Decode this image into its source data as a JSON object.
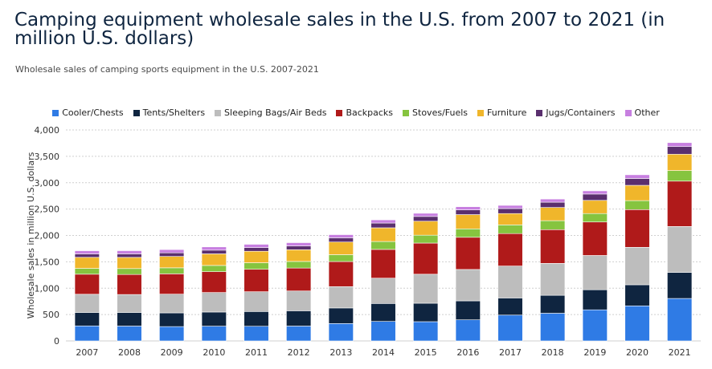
{
  "title": "Camping equipment wholesale sales in the U.S. from 2007 to 2021 (in million U.S. dollars)",
  "subtitle": "Wholesale sales of camping sports equipment in the U.S. 2007-2021",
  "chart_data": {
    "type": "bar",
    "stacked": true,
    "title": "Camping equipment wholesale sales in the U.S. from 2007 to 2021 (in million U.S. dollars)",
    "ylabel": "Wholesale sales in million U.S. dollars",
    "xlabel": "",
    "ylim": [
      0,
      4000
    ],
    "yticks": [
      0,
      500,
      1000,
      1500,
      2000,
      2500,
      3000,
      3500,
      4000
    ],
    "ytick_labels": [
      "0",
      "500",
      "1,000",
      "1,500",
      "2,000",
      "2,500",
      "3,000",
      "3,500",
      "4,000"
    ],
    "grid": true,
    "legend_position": "top",
    "categories": [
      "2007",
      "2008",
      "2009",
      "2010",
      "2011",
      "2012",
      "2013",
      "2014",
      "2015",
      "2016",
      "2017",
      "2018",
      "2019",
      "2020",
      "2021"
    ],
    "series": [
      {
        "name": "Cooler/Chests",
        "color": "#2f7be5",
        "values": [
          285,
          282,
          272,
          280,
          278,
          282,
          330,
          370,
          365,
          400,
          490,
          525,
          590,
          665,
          805
        ]
      },
      {
        "name": "Tents/Shelters",
        "color": "#0f2540",
        "values": [
          255,
          258,
          260,
          268,
          280,
          290,
          295,
          340,
          350,
          360,
          325,
          340,
          380,
          400,
          495
        ]
      },
      {
        "name": "Sleeping Bags/Air Beds",
        "color": "#bdbdbd",
        "values": [
          345,
          340,
          355,
          370,
          375,
          375,
          405,
          480,
          550,
          595,
          605,
          605,
          650,
          710,
          870
        ]
      },
      {
        "name": "Backpacks",
        "color": "#b01a1a",
        "values": [
          380,
          380,
          385,
          395,
          425,
          435,
          475,
          545,
          590,
          610,
          615,
          640,
          635,
          715,
          860
        ]
      },
      {
        "name": "Stoves/Fuels",
        "color": "#86c43f",
        "values": [
          110,
          112,
          114,
          118,
          124,
          125,
          130,
          150,
          150,
          160,
          165,
          170,
          160,
          170,
          200
        ]
      },
      {
        "name": "Furniture",
        "color": "#f0b62b",
        "values": [
          210,
          212,
          216,
          220,
          218,
          222,
          240,
          260,
          265,
          270,
          215,
          250,
          250,
          290,
          310
        ]
      },
      {
        "name": "Jugs/Containers",
        "color": "#5a2f6e",
        "values": [
          65,
          67,
          68,
          70,
          70,
          72,
          80,
          90,
          90,
          90,
          95,
          100,
          120,
          130,
          145
        ]
      },
      {
        "name": "Other",
        "color": "#c77fe0",
        "values": [
          60,
          60,
          62,
          62,
          62,
          62,
          60,
          60,
          60,
          60,
          60,
          60,
          60,
          70,
          75
        ]
      }
    ]
  }
}
